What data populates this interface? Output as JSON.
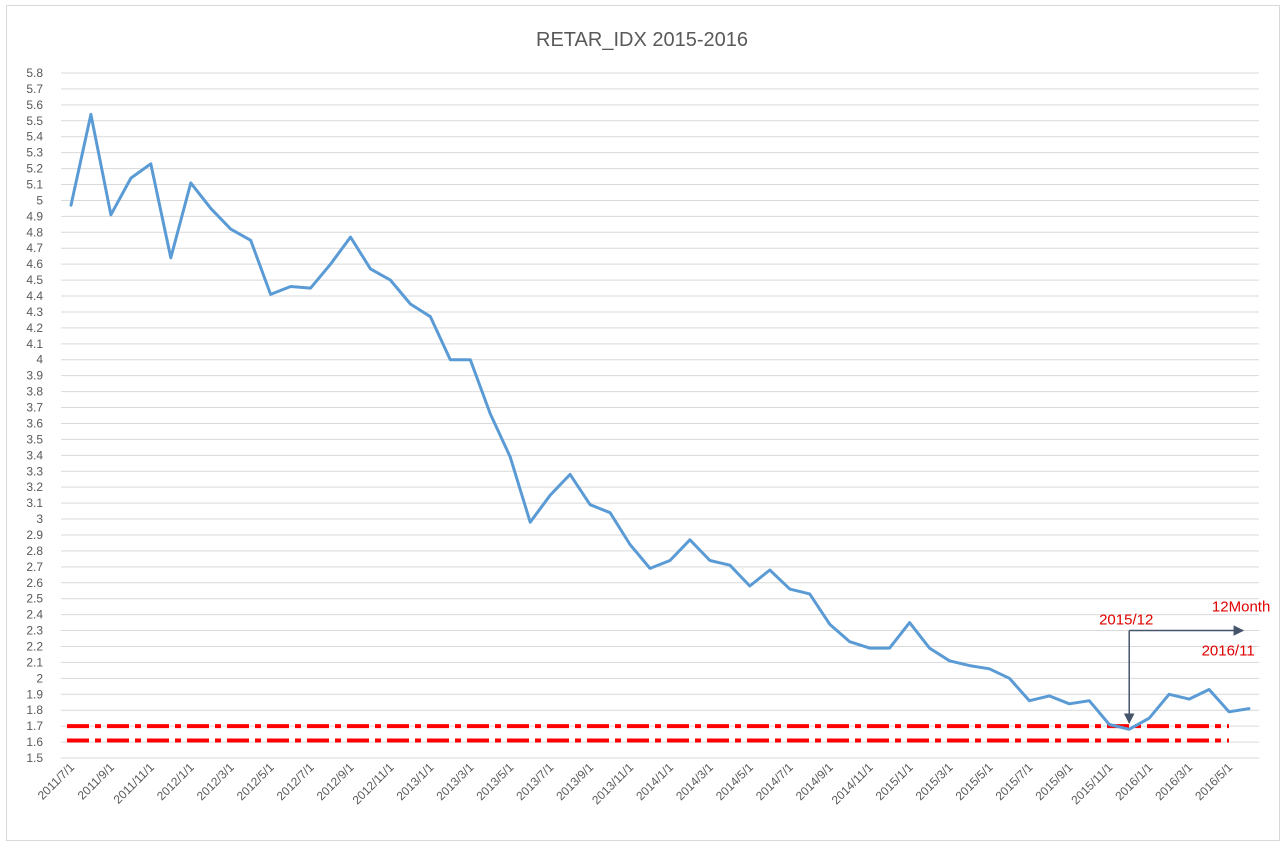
{
  "chart_data": {
    "type": "line",
    "title": "RETAR_IDX 2015-2016",
    "xlabel": "",
    "ylabel": "",
    "ylim": [
      1.5,
      5.8
    ],
    "ytick_step": 0.1,
    "ytick_labels": [
      "1.5",
      "1.6",
      "1.7",
      "1.8",
      "1.9",
      "2",
      "2.1",
      "2.2",
      "2.3",
      "2.4",
      "2.5",
      "2.6",
      "2.7",
      "2.8",
      "2.9",
      "3",
      "3.1",
      "3.2",
      "3.3",
      "3.4",
      "3.5",
      "3.6",
      "3.7",
      "3.8",
      "3.9",
      "4",
      "4.1",
      "4.2",
      "4.3",
      "4.4",
      "4.5",
      "4.6",
      "4.7",
      "4.8",
      "4.9",
      "5",
      "5.1",
      "5.2",
      "5.3",
      "5.4",
      "5.5",
      "5.6",
      "5.7",
      "5.8"
    ],
    "grid": true,
    "legend": "none",
    "x_tick_labels": [
      "2011/7/1",
      "2011/9/1",
      "2011/11/1",
      "2012/1/1",
      "2012/3/1",
      "2012/5/1",
      "2012/7/1",
      "2012/9/1",
      "2012/11/1",
      "2013/1/1",
      "2013/3/1",
      "2013/5/1",
      "2013/7/1",
      "2013/9/1",
      "2013/11/1",
      "2014/1/1",
      "2014/3/1",
      "2014/5/1",
      "2014/7/1",
      "2014/9/1",
      "2014/11/1",
      "2015/1/1",
      "2015/3/1",
      "2015/5/1",
      "2015/7/1",
      "2015/9/1",
      "2015/11/1",
      "2016/1/1",
      "2016/3/1",
      "2016/5/1"
    ],
    "series": [
      {
        "name": "",
        "color": "#5b9bd5",
        "values": [
          4.97,
          5.54,
          4.91,
          5.14,
          5.23,
          4.64,
          5.11,
          4.95,
          4.82,
          4.75,
          4.41,
          4.46,
          4.45,
          4.6,
          4.77,
          4.57,
          4.5,
          4.35,
          4.27,
          4.0,
          4.0,
          3.66,
          3.39,
          2.98,
          3.15,
          3.28,
          3.09,
          3.04,
          2.84,
          2.69,
          2.74,
          2.87,
          2.74,
          2.71,
          2.58,
          2.68,
          2.56,
          2.53,
          2.34,
          2.23,
          2.19,
          2.19,
          2.35,
          2.19,
          2.11,
          2.08,
          2.06,
          2.0,
          1.86,
          1.89,
          1.84,
          1.86,
          1.71,
          1.68,
          1.75,
          1.9,
          1.87,
          1.93,
          1.79,
          1.81
        ]
      }
    ],
    "reference_lines": [
      {
        "y": 1.7,
        "color": "#ff0000",
        "style": "dash-dot"
      },
      {
        "y": 1.61,
        "color": "#ff0000",
        "style": "dash-dot"
      }
    ],
    "annotations": {
      "start_label": "2015/12",
      "duration_label": "12Month",
      "end_label": "2016/11",
      "arrow_color": "#44546a",
      "text_color": "#e00000",
      "start_index": 53,
      "arrow_y": 2.3,
      "arrow_end_index": 58.7
    }
  }
}
